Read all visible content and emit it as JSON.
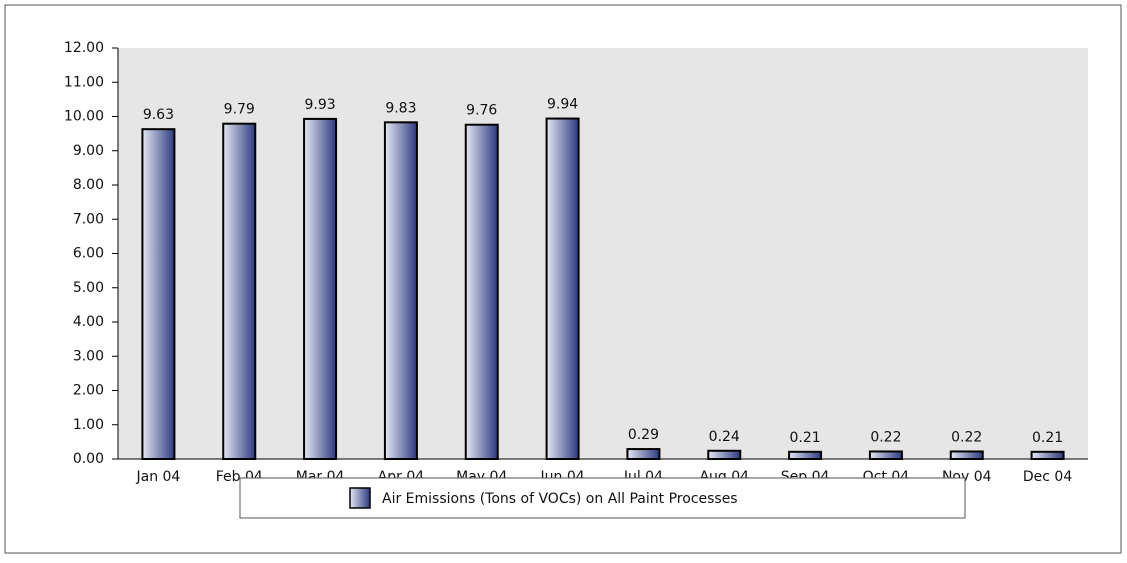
{
  "chart_data": {
    "type": "bar",
    "categories": [
      "Jan 04",
      "Feb 04",
      "Mar 04",
      "Apr 04",
      "May 04",
      "Jun 04",
      "Jul 04",
      "Aug 04",
      "Sep 04",
      "Oct 04",
      "Nov 04",
      "Dec 04"
    ],
    "series": [
      {
        "name": "Air Emissions (Tons of VOCs) on All Paint Processes",
        "color": "#2e3a80",
        "values": [
          9.63,
          9.79,
          9.93,
          9.83,
          9.76,
          9.94,
          0.29,
          0.24,
          0.21,
          0.22,
          0.22,
          0.21
        ]
      }
    ],
    "ylim": [
      0,
      12
    ],
    "yticks": [
      {
        "value": 0,
        "label": "0.00"
      },
      {
        "value": 1,
        "label": "1.00"
      },
      {
        "value": 2,
        "label": "2.00"
      },
      {
        "value": 3,
        "label": "3.00"
      },
      {
        "value": 4,
        "label": "4.00"
      },
      {
        "value": 5,
        "label": "5.00"
      },
      {
        "value": 6,
        "label": "6.00"
      },
      {
        "value": 7,
        "label": "7.00"
      },
      {
        "value": 8,
        "label": "8.00"
      },
      {
        "value": 9,
        "label": "9.00"
      },
      {
        "value": 10,
        "label": "10.00"
      },
      {
        "value": 11,
        "label": "11.00"
      },
      {
        "value": 12,
        "label": "12.00"
      }
    ],
    "grid": false,
    "legend": "bottom"
  }
}
